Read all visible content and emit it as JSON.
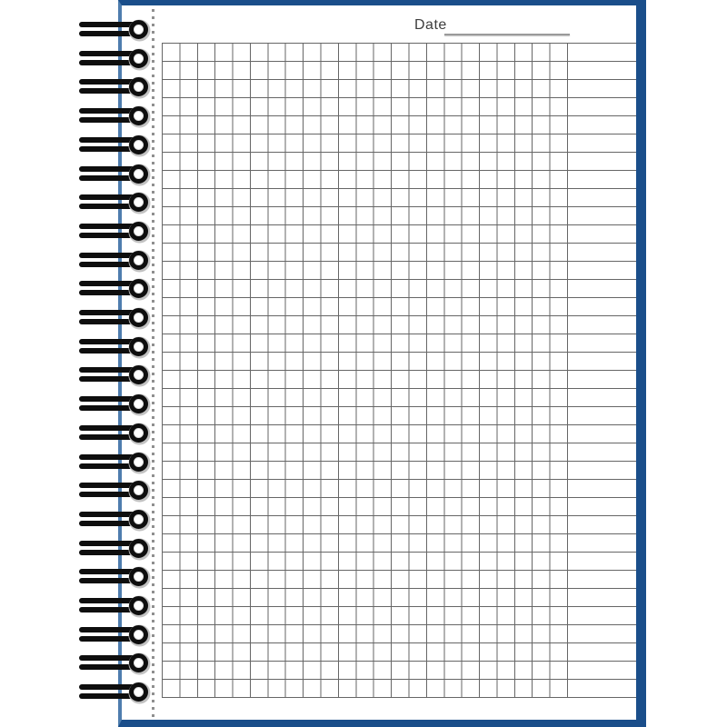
{
  "date_field": {
    "label": "Date",
    "value": ""
  },
  "notebook": {
    "colors": {
      "cover": "#1a4e8a",
      "page_edge": "#4e7dae",
      "grid_line": "#666666",
      "perforation": "#8f8f8f",
      "underline": "#9a9a9a",
      "coil": "#0e0e0e",
      "paper": "#ffffff"
    },
    "binding": {
      "coil_count": 24
    },
    "grid": {
      "columns": 23,
      "rows": 36
    }
  }
}
